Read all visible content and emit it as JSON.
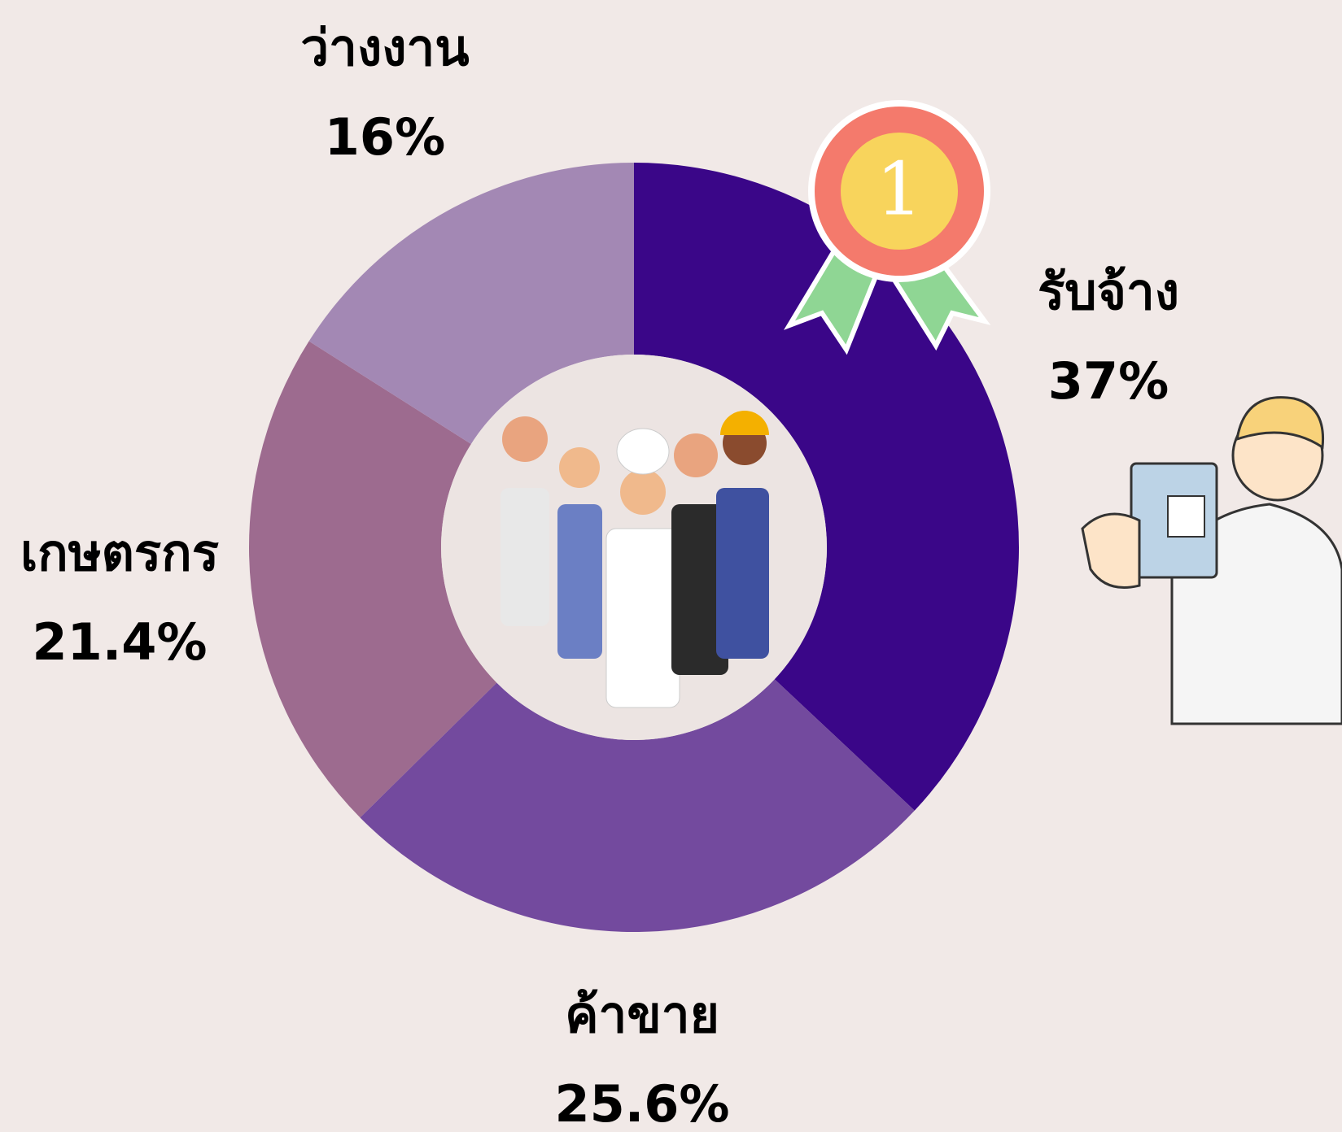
{
  "chart_data": {
    "type": "donut",
    "categories": [
      "รับจ้าง",
      "ค้าขาย",
      "เกษตรกร",
      "ว่างงาน"
    ],
    "values": [
      37,
      25.6,
      21.4,
      16
    ],
    "value_labels": [
      "37%",
      "25.6%",
      "21.4%",
      "16%"
    ],
    "colors": [
      "#3a0688",
      "#734a9e",
      "#9d6b8f",
      "#a388b4"
    ]
  },
  "badge_text": "1"
}
